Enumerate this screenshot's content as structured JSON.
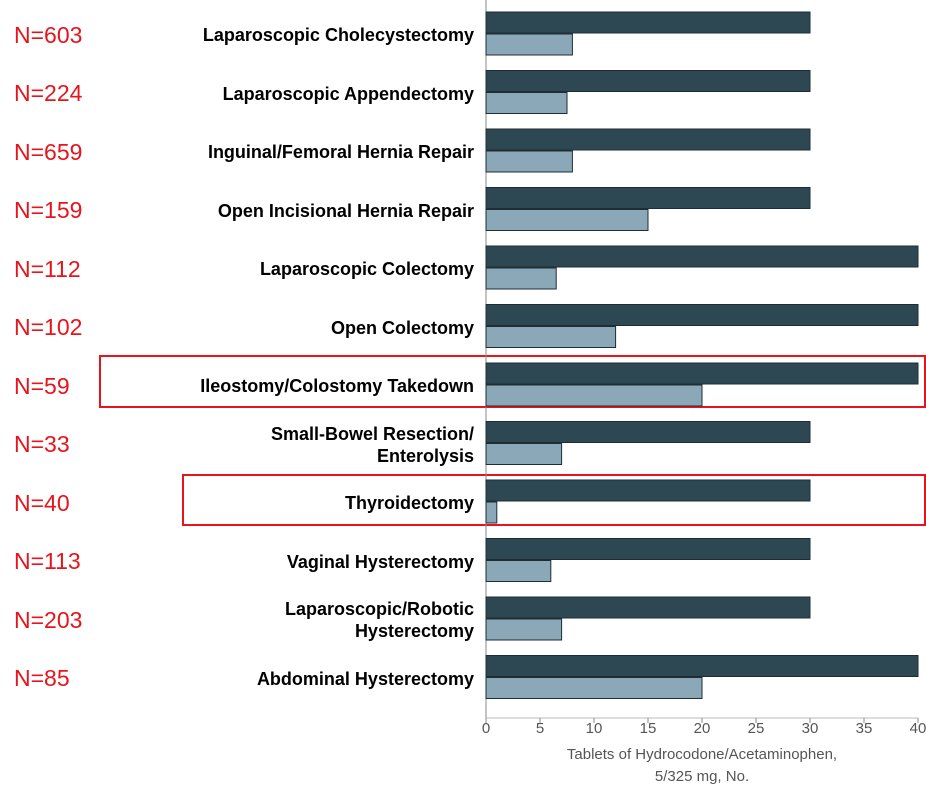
{
  "chart_data": {
    "type": "hbar",
    "xlabel": "Tablets of Hydrocodone/Acetaminophen,\n5/325 mg, No.",
    "categories": [
      "Laparoscopic Cholecystectomy",
      "Laparoscopic Appendectomy",
      "Inguinal/Femoral Hernia Repair",
      "Open Incisional Hernia Repair",
      "Laparoscopic Colectomy",
      "Open Colectomy",
      "Ileostomy/Colostomy Takedown",
      "Small-Bowel Resection/\nEnterolysis",
      "Thyroidectomy",
      "Vaginal Hysterectomy",
      "Laparoscopic/Robotic\nHysterectomy",
      "Abdominal Hysterectomy"
    ],
    "annotations": [
      "N=603",
      "N=224",
      "N=659",
      "N=159",
      "N=112",
      "N=102",
      "N=59",
      "N=33",
      "N=40",
      "N=113",
      "N=203",
      "N=85"
    ],
    "series": [
      {
        "color": "#2d4852",
        "values": [
          30,
          30,
          30,
          30,
          40,
          40,
          40,
          30,
          30,
          30,
          30,
          40
        ]
      },
      {
        "color": "#8aa8b7",
        "values": [
          8,
          7.5,
          8,
          15,
          6.5,
          12,
          20,
          7,
          1,
          6,
          7,
          20
        ]
      }
    ],
    "xlim": [
      0,
      40
    ],
    "xticks": [
      0,
      5,
      10,
      15,
      20,
      25,
      30,
      35,
      40
    ]
  }
}
